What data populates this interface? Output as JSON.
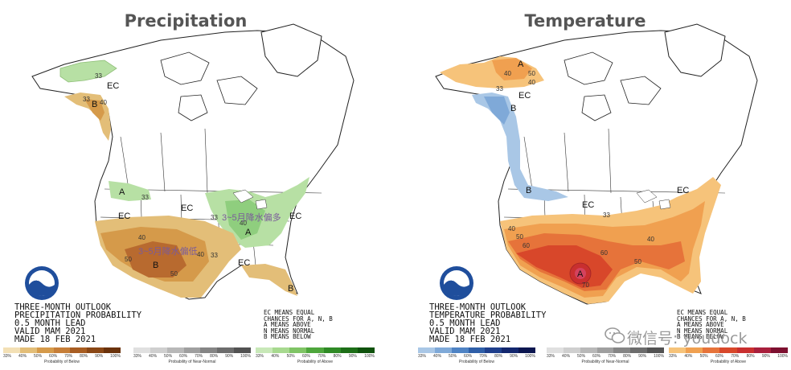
{
  "colors": {
    "below_precip_1": "#e3be78",
    "below_precip_2": "#d59a4a",
    "below_precip_3": "#b86a2f",
    "above_precip_1": "#b7e0a4",
    "above_precip_2": "#8fce7e",
    "above_temp_1": "#f6c37a",
    "above_temp_2": "#f0a050",
    "above_temp_3": "#e6733a",
    "above_temp_4": "#d8472a",
    "above_temp_5": "#c92f2f",
    "below_temp_1": "#a9c7e6",
    "below_temp_2": "#7fa9d8"
  },
  "precipitation": {
    "title": "Precipitation",
    "outlook_lines": [
      "THREE-MONTH OUTLOOK",
      "PRECIPITATION PROBABILITY",
      "0.5 MONTH LEAD",
      "VALID MAM 2021",
      "MADE 18 FEB 2021"
    ],
    "legend_lines": [
      "EC MEANS EQUAL",
      "CHANCES FOR A, N, B",
      "A MEANS ABOVE",
      "N MEANS NORMAL",
      "B MEANS BELOW"
    ],
    "annotations": {
      "above": "3~5月降水偏多",
      "below": "3~5月降水偏低"
    },
    "map_labels": {
      "ec1": "EC",
      "ec2": "EC",
      "ec3": "EC",
      "ec4": "EC",
      "ec5": "EC",
      "a1": "A",
      "a2": "A",
      "b1": "B",
      "b2": "B",
      "b3": "B",
      "n33a": "33",
      "n33b": "33",
      "n40a": "40",
      "n40b": "40",
      "n50": "50",
      "n40c": "40",
      "n50b": "50",
      "n33c": "33",
      "n33d": "33",
      "n40d": "40",
      "n33e": "33"
    },
    "scales": [
      {
        "ticks": [
          "33%",
          "40%",
          "50%",
          "60%",
          "70%",
          "80%",
          "90%",
          "100%"
        ],
        "caption": "Probability of Below",
        "colors": [
          "#f3e0b5",
          "#e3be78",
          "#d59a4a",
          "#c67e38",
          "#a85d22",
          "#8a4715",
          "#6a320b"
        ]
      },
      {
        "ticks": [
          "33%",
          "40%",
          "50%",
          "60%",
          "70%",
          "80%",
          "90%",
          "100%"
        ],
        "caption": "Probability of Near-Normal",
        "colors": [
          "#e0e0e0",
          "#cfcfcf",
          "#b8b8b8",
          "#9f9f9f",
          "#858585",
          "#6c6c6c",
          "#525252"
        ]
      },
      {
        "ticks": [
          "33%",
          "40%",
          "50%",
          "60%",
          "70%",
          "80%",
          "90%",
          "100%"
        ],
        "caption": "Probability of Above",
        "colors": [
          "#c8e8b8",
          "#a7d98f",
          "#7fc465",
          "#4ea63c",
          "#2f8a25",
          "#1d6e17",
          "#0f520c"
        ]
      }
    ]
  },
  "temperature": {
    "title": "Temperature",
    "outlook_lines": [
      "THREE-MONTH OUTLOOK",
      "TEMPERATURE PROBABILITY",
      "0.5 MONTH LEAD",
      "VALID MAM 2021",
      "MADE 18 FEB 2021"
    ],
    "legend_lines": [
      "EC MEANS EQUAL",
      "CHANCES FOR A, N, B",
      "A MEANS ABOVE",
      "N MEANS NORMAL",
      "B MEANS BELOW"
    ],
    "map_labels": {
      "ec1": "EC",
      "ec2": "EC",
      "ec3": "EC",
      "a1": "A",
      "a2": "A",
      "b1": "B",
      "b2": "B",
      "n40a": "40",
      "n50a": "50",
      "n33a": "33",
      "n40b": "40",
      "n33b": "33",
      "n40c": "40",
      "n50b": "50",
      "n60a": "60",
      "n60b": "60",
      "n40d": "40",
      "n50c": "50",
      "n70": "70"
    },
    "scales": [
      {
        "ticks": [
          "33%",
          "40%",
          "50%",
          "60%",
          "70%",
          "80%",
          "90%",
          "100%"
        ],
        "caption": "Probability of Below",
        "colors": [
          "#a9c7e6",
          "#7fa9d8",
          "#4f83c4",
          "#2f5fa8",
          "#1f3f8c",
          "#13276e",
          "#0b1650"
        ]
      },
      {
        "ticks": [
          "33%",
          "40%",
          "50%",
          "60%",
          "70%",
          "80%",
          "90%",
          "100%"
        ],
        "caption": "Probability of Near-Normal",
        "colors": [
          "#e0e0e0",
          "#cfcfcf",
          "#b8b8b8",
          "#9f9f9f",
          "#858585",
          "#6c6c6c",
          "#525252"
        ]
      },
      {
        "ticks": [
          "33%",
          "40%",
          "50%",
          "60%",
          "70%",
          "80%",
          "90%",
          "100%"
        ],
        "caption": "Probability of Above",
        "colors": [
          "#f6c37a",
          "#f0a050",
          "#e6733a",
          "#d8472a",
          "#c92f2f",
          "#a81f3c",
          "#7d1030"
        ]
      }
    ]
  },
  "watermark": {
    "text": "微信号: youdock",
    "icon": "wechat-icon"
  },
  "logo": {
    "text": "NOAA"
  }
}
